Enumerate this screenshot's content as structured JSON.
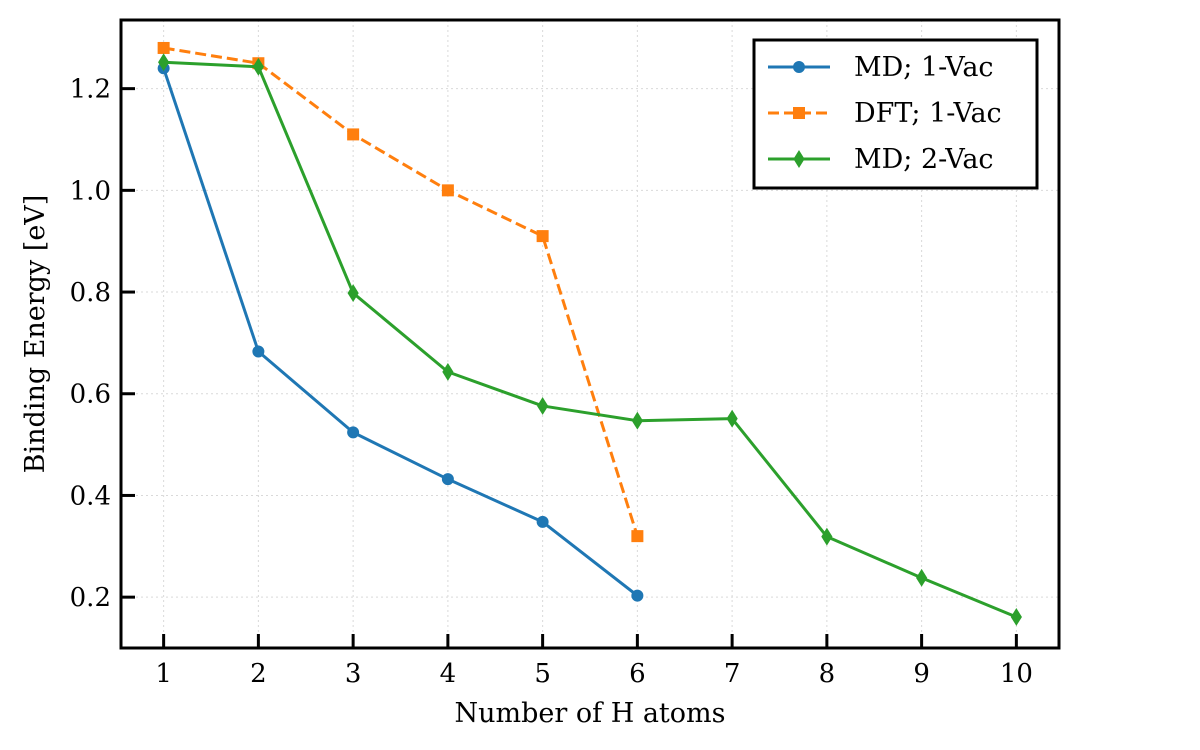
{
  "chart_data": {
    "type": "line",
    "title": "",
    "xlabel": "Number of H atoms",
    "ylabel": "Binding Energy [eV]",
    "xlim": [
      0.55,
      10.45
    ],
    "ylim": [
      0.1,
      1.335
    ],
    "xticks": [
      1,
      2,
      3,
      4,
      5,
      6,
      7,
      8,
      9,
      10
    ],
    "yticks": [
      0.2,
      0.4,
      0.6,
      0.8,
      1.0,
      1.2
    ],
    "grid": true,
    "legend_position": "top-right",
    "series": [
      {
        "name": "MD; 1-Vac",
        "color": "#1f77b4",
        "marker": "circle",
        "line_style": "solid",
        "x": [
          1,
          2,
          3,
          4,
          5,
          6
        ],
        "y": [
          1.24,
          0.683,
          0.524,
          0.432,
          0.348,
          0.203
        ]
      },
      {
        "name": "DFT; 1-Vac",
        "color": "#ff7f0e",
        "marker": "square",
        "line_style": "dashed",
        "x": [
          1,
          2,
          3,
          4,
          5,
          6
        ],
        "y": [
          1.28,
          1.25,
          1.11,
          1.0,
          0.91,
          0.32
        ]
      },
      {
        "name": "MD; 2-Vac",
        "color": "#2ca02c",
        "marker": "thin-diamond",
        "line_style": "solid",
        "x": [
          1,
          2,
          3,
          4,
          5,
          6,
          7,
          8,
          9,
          10
        ],
        "y": [
          1.252,
          1.243,
          0.798,
          0.643,
          0.576,
          0.547,
          0.551,
          0.319,
          0.238,
          0.161
        ]
      }
    ]
  }
}
